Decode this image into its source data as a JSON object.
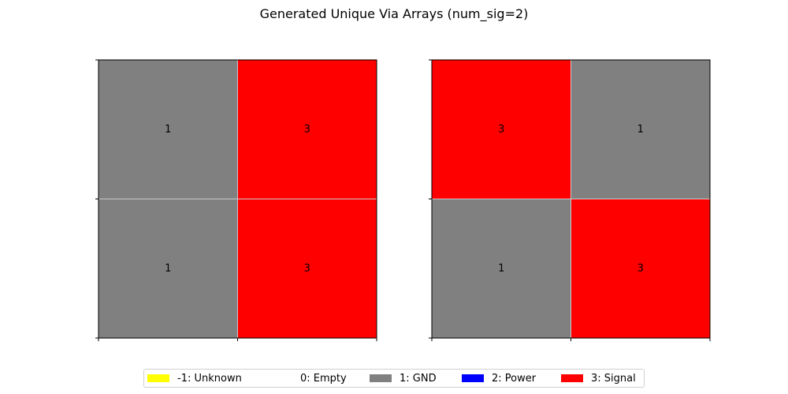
{
  "figure": {
    "title": "Generated Unique Via Arrays (num_sig=2)"
  },
  "palette": {
    "-1": "#ffff00",
    "0": "#ffffff",
    "1": "#808080",
    "2": "#0000ff",
    "3": "#ff0000"
  },
  "chart_data": [
    {
      "type": "heatmap",
      "title": "",
      "rows": 2,
      "cols": 2,
      "values": [
        [
          1,
          3
        ],
        [
          1,
          3
        ]
      ],
      "cell_labels": true,
      "grid": true,
      "tick_labels": false
    },
    {
      "type": "heatmap",
      "title": "",
      "rows": 2,
      "cols": 2,
      "values": [
        [
          3,
          1
        ],
        [
          1,
          3
        ]
      ],
      "cell_labels": true,
      "grid": true,
      "tick_labels": false
    }
  ],
  "legend": {
    "placement": "bottom-center",
    "items": [
      {
        "code": -1,
        "label": "-1: Unknown",
        "color": "#ffff00"
      },
      {
        "code": 0,
        "label": "0: Empty",
        "color": "#ffffff"
      },
      {
        "code": 1,
        "label": "1: GND",
        "color": "#808080"
      },
      {
        "code": 2,
        "label": "2: Power",
        "color": "#0000ff"
      },
      {
        "code": 3,
        "label": "3: Signal",
        "color": "#ff0000"
      }
    ]
  }
}
